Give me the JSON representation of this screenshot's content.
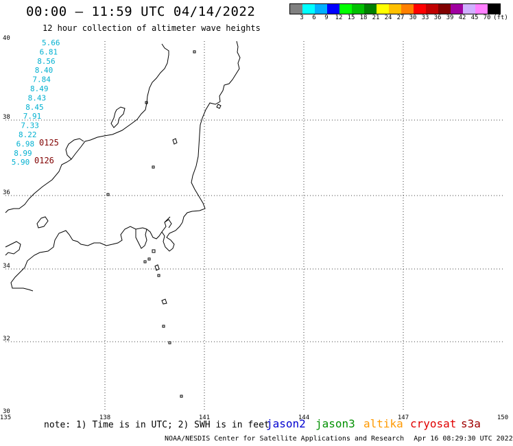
{
  "title": "00:00 – 11:59 UTC 04/14/2022",
  "subtitle": "12 hour collection of altimeter wave heights",
  "scale": {
    "unit": "(ft)",
    "colors": [
      "#808080",
      "#00ffff",
      "#00b0ff",
      "#0000ff",
      "#00ff00",
      "#00c000",
      "#008000",
      "#ffff00",
      "#ffc000",
      "#ff8000",
      "#ff0000",
      "#c00000",
      "#800000",
      "#a000a0",
      "#d0b0ff",
      "#ff80ff",
      "#000000"
    ],
    "labels": [
      "3",
      "6",
      "9",
      "12",
      "15",
      "18",
      "21",
      "24",
      "27",
      "30",
      "33",
      "36",
      "39",
      "42",
      "45",
      "70"
    ]
  },
  "axes": {
    "lon_labels": [
      "135",
      "138",
      "141",
      "144",
      "147",
      "150"
    ],
    "lat_labels": [
      "40",
      "38",
      "36",
      "34",
      "32",
      "30"
    ]
  },
  "observations": {
    "track_color": "#00b0d0",
    "values": [
      "5.66",
      "6.81",
      "8.56",
      "8.40",
      "7.84",
      "8.49",
      "8.43",
      "8.45",
      "7.91",
      "7.33",
      "8.22",
      "6.98",
      "8.99",
      "5.90"
    ],
    "time_color": "#800000",
    "times": [
      "0125",
      "0126"
    ]
  },
  "note": "note: 1) Time is in UTC; 2) SWH is in feet",
  "satellites": [
    {
      "name": "jason2",
      "color": "#0000d0"
    },
    {
      "name": "jason3",
      "color": "#009000"
    },
    {
      "name": "altika",
      "color": "#ff9900"
    },
    {
      "name": "cryosat",
      "color": "#e00000"
    },
    {
      "name": "s3a",
      "color": "#a00000"
    }
  ],
  "credit": "NOAA/NESDIS Center for Satellite Applications and Research",
  "generated": "Apr 16 08:29:30 UTC 2022"
}
